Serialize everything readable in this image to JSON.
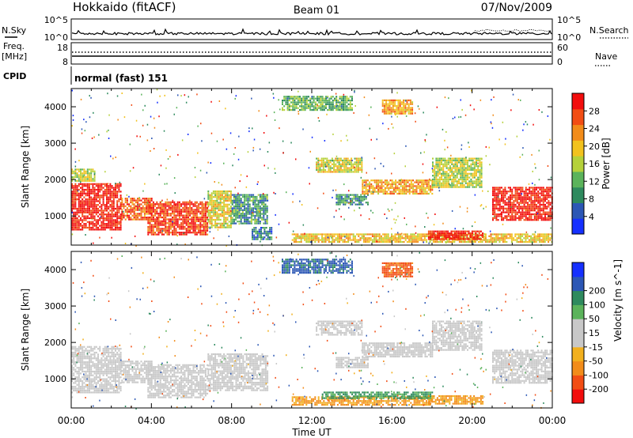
{
  "header": {
    "station": "Hokkaido (fitACF)",
    "beam": "Beam 01",
    "date": "07/Nov/2009"
  },
  "panels": {
    "nsky": {
      "label": "N.Sky",
      "right_label": "N.Search",
      "left_ticks": [
        "10^5",
        "10^0"
      ],
      "right_ticks": [
        "10^5",
        "10^0"
      ]
    },
    "freq": {
      "label_line1": "Freq.",
      "label_line2": "[MHz]",
      "right_label": "Nave",
      "left_ticks": [
        "18",
        "8"
      ],
      "right_ticks": [
        "60",
        "0"
      ]
    },
    "cpid": {
      "label": "CPID",
      "text": "normal (fast) 151"
    }
  },
  "colors": {
    "power_scale": [
      "#1530ff",
      "#2c57b5",
      "#2e8a5e",
      "#5bb35b",
      "#b5d13a",
      "#f2c21e",
      "#f28c1a",
      "#f24d14",
      "#f20d0d"
    ],
    "velocity_scale": [
      "#f20d0d",
      "#f24d14",
      "#f28c1a",
      "#f2b01e",
      "#c8c8c8",
      "#c8c8c8",
      "#5bb35b",
      "#2e8a5e",
      "#2c57b5",
      "#1530ff"
    ]
  },
  "chart_data": [
    {
      "type": "heatmap",
      "name": "power",
      "ylabel": "Slant Range [km]",
      "yticks": [
        1000,
        2000,
        3000,
        4000
      ],
      "ylim": [
        200,
        4500
      ],
      "xlim_hours": [
        0,
        24
      ],
      "colorbar": {
        "label": "Power [dB]",
        "ticks": [
          "4",
          "8",
          "12",
          "16",
          "20",
          "24",
          "28"
        ],
        "range": [
          0,
          32
        ]
      },
      "echo_regions": [
        {
          "t": [
            0.0,
            2.5
          ],
          "r": [
            600,
            1900
          ],
          "level": 30
        },
        {
          "t": [
            0.0,
            1.2
          ],
          "r": [
            1950,
            2300
          ],
          "level": 16
        },
        {
          "t": [
            2.5,
            4.0
          ],
          "r": [
            900,
            1500
          ],
          "level": 26
        },
        {
          "t": [
            3.8,
            6.8
          ],
          "r": [
            500,
            1400
          ],
          "level": 28
        },
        {
          "t": [
            6.8,
            8.0
          ],
          "r": [
            700,
            1700
          ],
          "level": 18
        },
        {
          "t": [
            8.0,
            9.8
          ],
          "r": [
            800,
            1600
          ],
          "level": 10
        },
        {
          "t": [
            9.0,
            10.0
          ],
          "r": [
            350,
            700
          ],
          "level": 8
        },
        {
          "t": [
            11.0,
            24.0
          ],
          "r": [
            280,
            520
          ],
          "level": 20
        },
        {
          "t": [
            17.8,
            20.5
          ],
          "r": [
            350,
            600
          ],
          "level": 30
        },
        {
          "t": [
            12.2,
            14.5
          ],
          "r": [
            2200,
            2600
          ],
          "level": 18
        },
        {
          "t": [
            13.2,
            14.8
          ],
          "r": [
            1300,
            1600
          ],
          "level": 10
        },
        {
          "t": [
            14.5,
            18.0
          ],
          "r": [
            1600,
            2000
          ],
          "level": 22
        },
        {
          "t": [
            18.0,
            20.5
          ],
          "r": [
            1800,
            2600
          ],
          "level": 16
        },
        {
          "t": [
            21.0,
            24.0
          ],
          "r": [
            900,
            1800
          ],
          "level": 30
        },
        {
          "t": [
            10.5,
            14.0
          ],
          "r": [
            3900,
            4300
          ],
          "level": 12
        },
        {
          "t": [
            15.5,
            17.0
          ],
          "r": [
            3800,
            4200
          ],
          "level": 22
        }
      ]
    },
    {
      "type": "heatmap",
      "name": "velocity",
      "ylabel": "Slant Range [km]",
      "xlabel": "Time UT",
      "xticks": [
        "00:00",
        "04:00",
        "08:00",
        "12:00",
        "16:00",
        "20:00",
        "00:00"
      ],
      "yticks": [
        1000,
        2000,
        3000,
        4000
      ],
      "ylim": [
        200,
        4500
      ],
      "xlim_hours": [
        0,
        24
      ],
      "colorbar": {
        "label": "Velocity [m s^-1]",
        "ticks": [
          "-200",
          "-100",
          "-50",
          "-15",
          "15",
          "50",
          "100",
          "200"
        ]
      },
      "echo_regions": [
        {
          "t": [
            0.0,
            2.5
          ],
          "r": [
            600,
            1900
          ],
          "v": 0
        },
        {
          "t": [
            2.5,
            4.0
          ],
          "r": [
            900,
            1500
          ],
          "v": 0
        },
        {
          "t": [
            3.8,
            6.8
          ],
          "r": [
            500,
            1400
          ],
          "v": 0
        },
        {
          "t": [
            6.8,
            9.8
          ],
          "r": [
            700,
            1700
          ],
          "v": 0
        },
        {
          "t": [
            11.0,
            18.0
          ],
          "r": [
            280,
            520
          ],
          "v": -60
        },
        {
          "t": [
            12.5,
            18.0
          ],
          "r": [
            450,
            650
          ],
          "v": 60
        },
        {
          "t": [
            17.8,
            20.5
          ],
          "r": [
            300,
            550
          ],
          "v": -60
        },
        {
          "t": [
            12.2,
            14.5
          ],
          "r": [
            2200,
            2600
          ],
          "v": 0
        },
        {
          "t": [
            13.2,
            14.8
          ],
          "r": [
            1300,
            1600
          ],
          "v": 0
        },
        {
          "t": [
            14.5,
            18.0
          ],
          "r": [
            1600,
            2000
          ],
          "v": 0
        },
        {
          "t": [
            18.0,
            20.5
          ],
          "r": [
            1800,
            2600
          ],
          "v": 0
        },
        {
          "t": [
            21.0,
            24.0
          ],
          "r": [
            900,
            1800
          ],
          "v": 0
        },
        {
          "t": [
            10.5,
            14.0
          ],
          "r": [
            3900,
            4300
          ],
          "v": 120
        },
        {
          "t": [
            15.5,
            17.0
          ],
          "r": [
            3800,
            4200
          ],
          "v": -120
        }
      ]
    }
  ]
}
